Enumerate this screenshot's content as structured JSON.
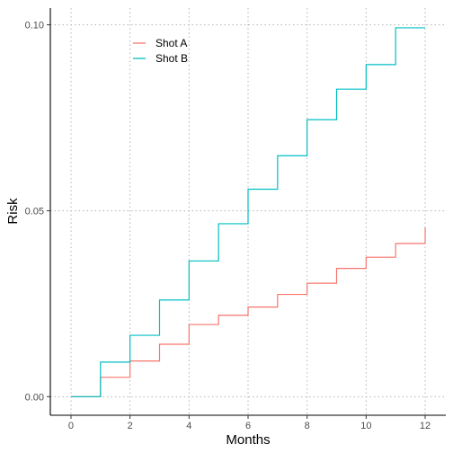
{
  "chart_data": {
    "type": "line",
    "step": true,
    "xlabel": "Months",
    "ylabel": "Risk",
    "xlim": [
      -0.7,
      12.7
    ],
    "ylim": [
      -0.005,
      0.1045
    ],
    "x_ticks": [
      0,
      2,
      4,
      6,
      8,
      10,
      12
    ],
    "x_tick_labels": [
      "0",
      "2",
      "4",
      "6",
      "8",
      "10",
      "12"
    ],
    "y_ticks": [
      0,
      0.05,
      0.1
    ],
    "y_tick_labels": [
      "0.00",
      "0.05",
      "0.10"
    ],
    "grid": true,
    "legend_position": "top-left (inside plot)",
    "series": [
      {
        "name": "Shot A",
        "color": "#F8766D",
        "x": [
          0,
          1,
          2,
          3,
          4,
          5,
          6,
          7,
          8,
          9,
          10,
          11,
          12,
          12
        ],
        "y": [
          0.0,
          0.0052,
          0.0096,
          0.0141,
          0.0194,
          0.0219,
          0.0241,
          0.0275,
          0.0305,
          0.0345,
          0.0375,
          0.0412,
          0.0412,
          0.0455
        ]
      },
      {
        "name": "Shot B",
        "color": "#00BFC4",
        "x": [
          0,
          1,
          2,
          3,
          4,
          5,
          6,
          7,
          8,
          9,
          10,
          11,
          12
        ],
        "y": [
          0.0,
          0.0093,
          0.0165,
          0.026,
          0.0365,
          0.0465,
          0.0558,
          0.0648,
          0.0745,
          0.0827,
          0.0893,
          0.0992,
          0.0992
        ]
      }
    ]
  }
}
